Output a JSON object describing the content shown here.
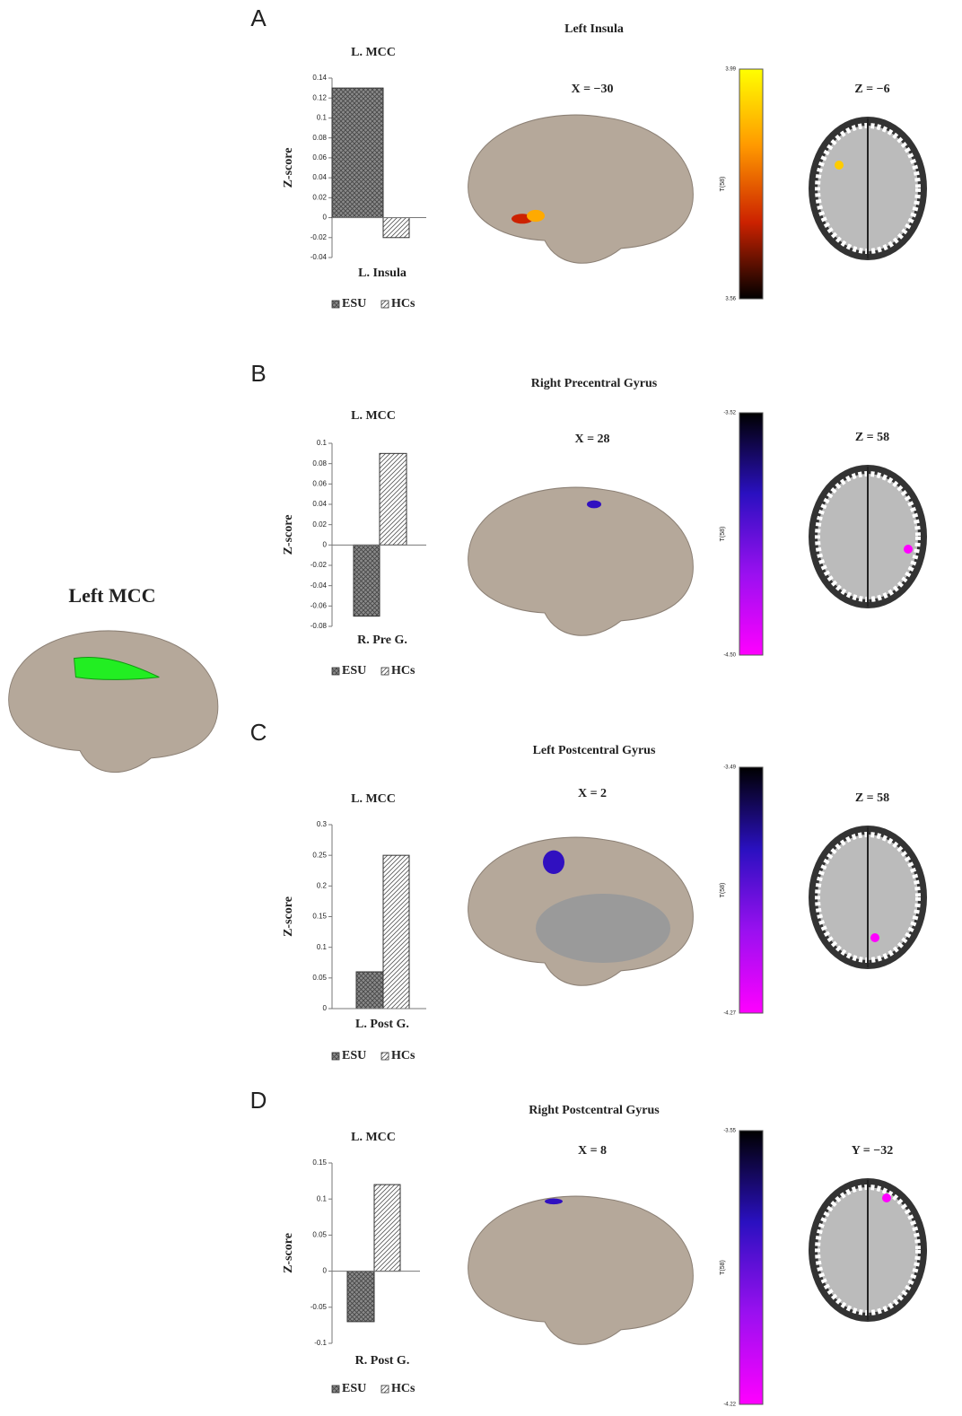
{
  "title": "Left MCC",
  "chart_data": [
    {
      "type": "bar",
      "title": "L. MCC",
      "ylabel": "Z-score",
      "xlabel": "L. Insula",
      "series": [
        {
          "name": "ESU",
          "color": "#8a8a8a",
          "hatch": "cross",
          "values": [
            0.13
          ]
        },
        {
          "name": "HCs",
          "color": "#ffffff",
          "hatch": "diagonal",
          "values": [
            -0.02
          ]
        }
      ],
      "ylim": [
        -0.04,
        0.14
      ],
      "yticks": [
        -0.04,
        -0.02,
        0,
        0.02,
        0.04,
        0.06,
        0.08,
        0.1,
        0.12,
        0.14
      ]
    },
    {
      "type": "bar",
      "title": "L. MCC",
      "ylabel": "Z-score",
      "xlabel": "R. Pre G.",
      "series": [
        {
          "name": "ESU",
          "color": "#8a8a8a",
          "hatch": "cross",
          "values": [
            -0.07
          ]
        },
        {
          "name": "HCs",
          "color": "#ffffff",
          "hatch": "diagonal",
          "values": [
            0.09
          ]
        }
      ],
      "ylim": [
        -0.08,
        0.1
      ],
      "yticks": [
        -0.08,
        -0.06,
        -0.04,
        -0.02,
        0,
        0.02,
        0.04,
        0.06,
        0.08,
        0.1
      ]
    },
    {
      "type": "bar",
      "title": "L. MCC",
      "ylabel": "Z-score",
      "xlabel": "L. Post G.",
      "series": [
        {
          "name": "ESU",
          "color": "#8a8a8a",
          "hatch": "cross",
          "values": [
            0.06
          ]
        },
        {
          "name": "HCs",
          "color": "#ffffff",
          "hatch": "diagonal",
          "values": [
            0.25
          ]
        }
      ],
      "ylim": [
        0,
        0.3
      ],
      "yticks": [
        0,
        0.05,
        0.1,
        0.15,
        0.2,
        0.25,
        0.3
      ]
    },
    {
      "type": "bar",
      "title": "L. MCC",
      "ylabel": "Z-score",
      "xlabel": "R. Post G.",
      "series": [
        {
          "name": "ESU",
          "color": "#8a8a8a",
          "hatch": "cross",
          "values": [
            -0.07
          ]
        },
        {
          "name": "HCs",
          "color": "#ffffff",
          "hatch": "diagonal",
          "values": [
            0.12
          ]
        }
      ],
      "ylim": [
        -0.1,
        0.15
      ],
      "yticks": [
        -0.1,
        -0.05,
        0,
        0.05,
        0.1,
        0.15
      ]
    }
  ],
  "panels": [
    {
      "letter": "A",
      "region": "Left Insula",
      "view": "X = −30",
      "slice": "Z = −6",
      "colorbar": {
        "max": "3.99",
        "min": "3.56",
        "label": "T(58)",
        "colors": [
          "#ffff00",
          "#ff9900",
          "#cc2200",
          "#000000"
        ]
      }
    },
    {
      "letter": "B",
      "region": "Right Precentral Gyrus",
      "view": "X = 28",
      "slice": "Z = 58",
      "colorbar": {
        "max": "-3.52",
        "min": "-4.50",
        "label": "T(58)",
        "colors": [
          "#000000",
          "#2a10c0",
          "#9a10f0",
          "#ff00ff"
        ]
      }
    },
    {
      "letter": "C",
      "region": "Left Postcentral Gyrus",
      "view": "X = 2",
      "slice": "Z = 58",
      "colorbar": {
        "max": "-3.49",
        "min": "-4.27",
        "label": "T(58)",
        "colors": [
          "#000000",
          "#2a10c0",
          "#9a10f0",
          "#ff00ff"
        ]
      }
    },
    {
      "letter": "D",
      "region": "Right Postcentral Gyrus",
      "view": "X = 8",
      "slice": "Y = −32",
      "colorbar": {
        "max": "-3.55",
        "min": "-4.22",
        "label": "T(58)",
        "colors": [
          "#000000",
          "#2a10c0",
          "#9a10f0",
          "#ff00ff"
        ]
      }
    }
  ]
}
